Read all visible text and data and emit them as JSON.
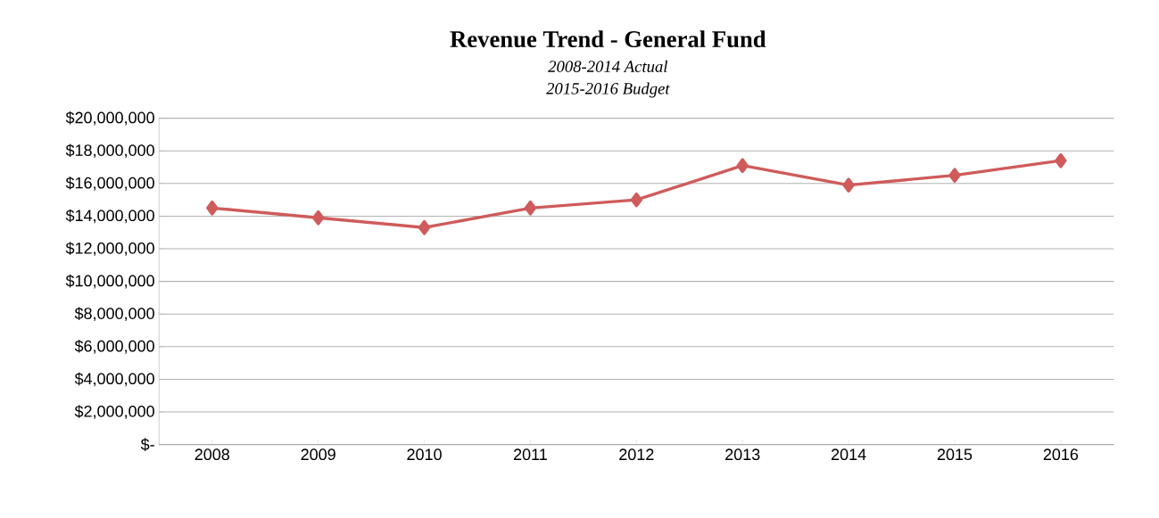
{
  "chart_data": {
    "type": "line",
    "title": "Revenue Trend - General Fund",
    "subtitle": "2008-2014 Actual",
    "annotations": [
      "2015-2016 Budget"
    ],
    "categories": [
      "2008",
      "2009",
      "2010",
      "2011",
      "2012",
      "2013",
      "2014",
      "2015",
      "2016"
    ],
    "series": [
      {
        "color": "#cf5b5b",
        "values": [
          14500000,
          13900000,
          13300000,
          14500000,
          15000000,
          17100000,
          15900000,
          16500000,
          17400000
        ]
      }
    ],
    "ylim": [
      0,
      20000000
    ],
    "yticks": [
      {
        "value": 0,
        "label": "$-"
      },
      {
        "value": 2000000,
        "label": "$2,000,000"
      },
      {
        "value": 4000000,
        "label": "$4,000,000"
      },
      {
        "value": 6000000,
        "label": "$6,000,000"
      },
      {
        "value": 8000000,
        "label": "$8,000,000"
      },
      {
        "value": 10000000,
        "label": "$10,000,000"
      },
      {
        "value": 12000000,
        "label": "$12,000,000"
      },
      {
        "value": 14000000,
        "label": "$14,000,000"
      },
      {
        "value": 16000000,
        "label": "$16,000,000"
      },
      {
        "value": 18000000,
        "label": "$18,000,000"
      },
      {
        "value": 20000000,
        "label": "$20,000,000"
      }
    ],
    "grid": "y",
    "marker": "diamond",
    "line_style": "solid"
  }
}
